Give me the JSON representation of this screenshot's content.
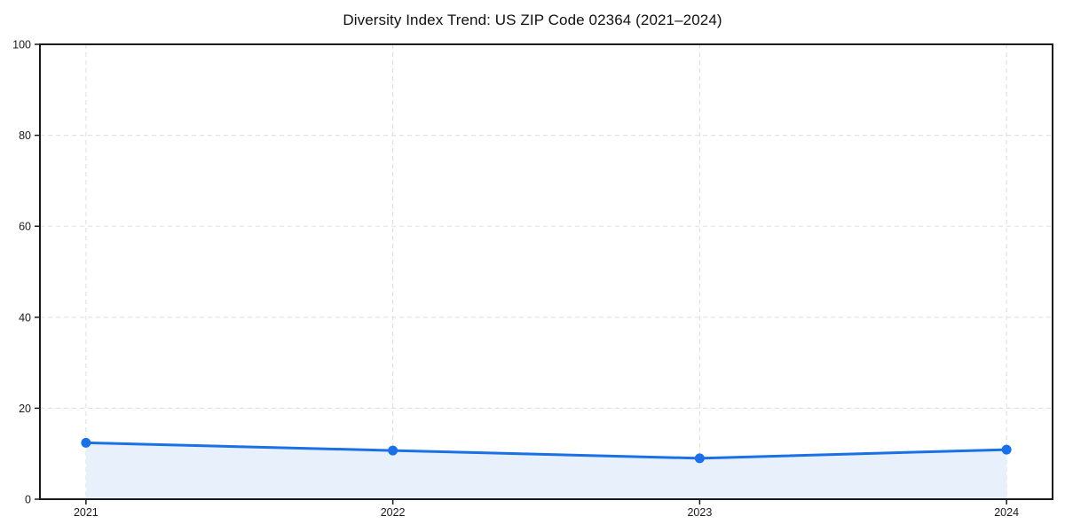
{
  "chart_data": {
    "type": "line",
    "title": "Diversity Index Trend: US ZIP Code 02364 (2021–2024)",
    "x": [
      "2021",
      "2022",
      "2023",
      "2024"
    ],
    "series": [
      {
        "name": "Diversity Index",
        "values": [
          12.4,
          10.7,
          9.0,
          10.9
        ]
      }
    ],
    "xlabel": "",
    "ylabel": "",
    "ylim": [
      0,
      100
    ],
    "yticks": [
      0,
      20,
      40,
      60,
      80,
      100
    ],
    "grid": true,
    "grid_style": "dashed",
    "legend": false,
    "marker": "circle",
    "x_margin_frac": 0.05,
    "colors": {
      "line": "#1a70e6",
      "marker": "#1a70e6",
      "fill": "#e8f0fc",
      "grid": "#e2e2e2",
      "spine": "#1a1a1a",
      "text": "#1a1a1a",
      "background": "#ffffff"
    }
  }
}
